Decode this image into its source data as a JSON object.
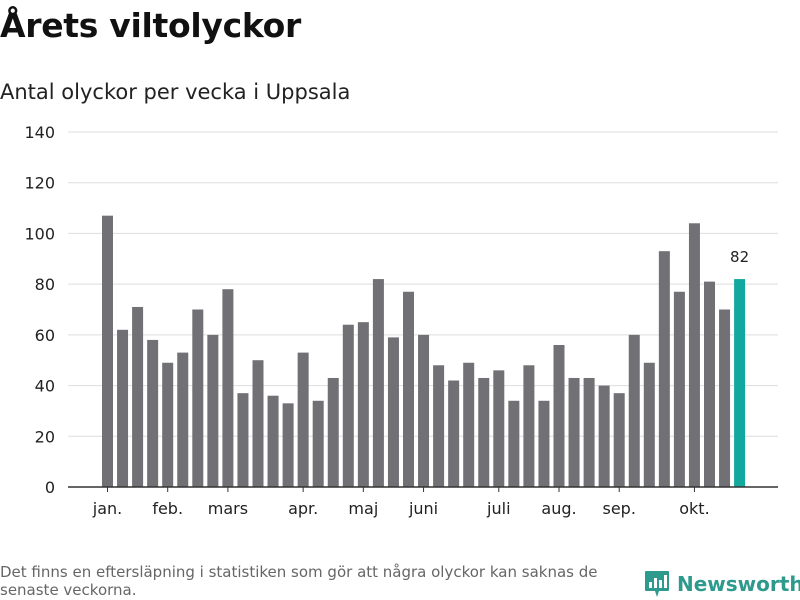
{
  "title": "Årets viltolyckor",
  "subtitle": "Antal olyckor per vecka i Uppsala",
  "footnote": "Det finns en eftersläpning i statistiken som gör att några olyckor kan saknas de senaste veckorna.",
  "brand": {
    "name": "Newsworthy",
    "logo_icon": "bar-chart-speech-bubble-icon"
  },
  "colors": {
    "bar": "#707075",
    "highlight": "#13a89e",
    "grid": "#dddddd",
    "axis": "#333333",
    "brand": "#2e9a8e"
  },
  "chart_data": {
    "type": "bar",
    "title": "Årets viltolyckor",
    "subtitle": "Antal olyckor per vecka i Uppsala",
    "xlabel": "",
    "ylabel": "",
    "ylim": [
      0,
      140
    ],
    "yticks": [
      0,
      20,
      40,
      60,
      80,
      100,
      120,
      140
    ],
    "grid": true,
    "series": [
      {
        "name": "Antal olyckor",
        "values": [
          107,
          62,
          71,
          58,
          49,
          53,
          70,
          60,
          78,
          37,
          50,
          36,
          33,
          53,
          34,
          43,
          64,
          65,
          82,
          59,
          77,
          60,
          48,
          42,
          49,
          43,
          46,
          34,
          48,
          34,
          56,
          43,
          43,
          40,
          37,
          60,
          49,
          93,
          77,
          104,
          81,
          70,
          82
        ]
      }
    ],
    "highlight_index": 42,
    "highlight_label": "82",
    "month_labels": [
      {
        "label": "jan.",
        "bar_index": 0
      },
      {
        "label": "feb.",
        "bar_index": 4
      },
      {
        "label": "mars",
        "bar_index": 8
      },
      {
        "label": "apr.",
        "bar_index": 13
      },
      {
        "label": "maj",
        "bar_index": 17
      },
      {
        "label": "juni",
        "bar_index": 21
      },
      {
        "label": "juli",
        "bar_index": 26
      },
      {
        "label": "aug.",
        "bar_index": 30
      },
      {
        "label": "sep.",
        "bar_index": 34
      },
      {
        "label": "okt.",
        "bar_index": 39
      }
    ]
  }
}
